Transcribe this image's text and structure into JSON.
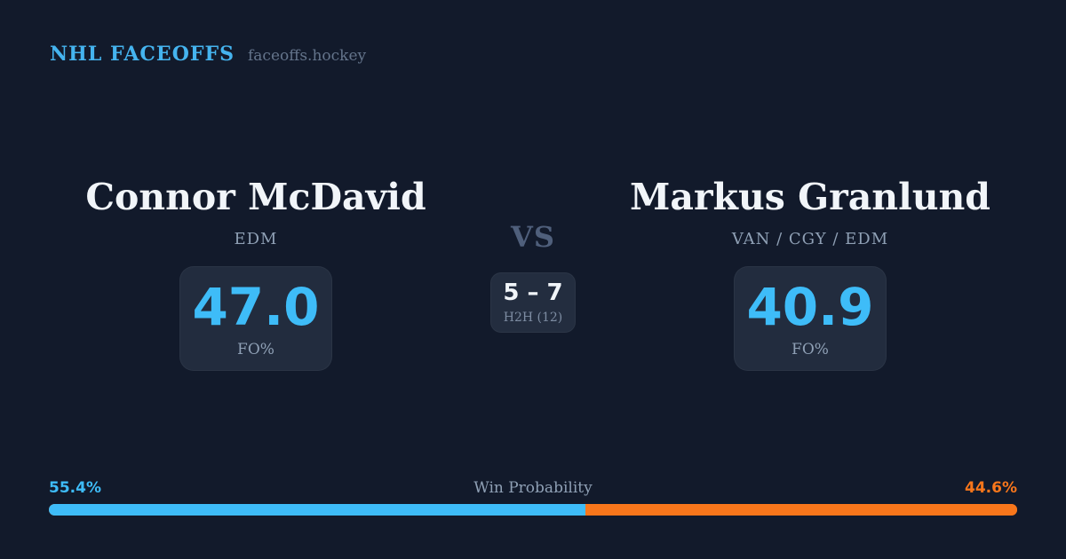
{
  "header": {
    "brand": "NHL FACEOFFS",
    "site": "faceoffs.hockey"
  },
  "matchup": {
    "vs_label": "VS",
    "h2h": {
      "score": "5 – 7",
      "label": "H2H (12)"
    },
    "players": [
      {
        "name": "Connor McDavid",
        "teams": "EDM",
        "fo_pct": "47.0",
        "stat_label": "FO%"
      },
      {
        "name": "Markus Granlund",
        "teams": "VAN / CGY / EDM",
        "fo_pct": "40.9",
        "stat_label": "FO%"
      }
    ]
  },
  "win_probability": {
    "title": "Win Probability",
    "left_label": "55.4%",
    "right_label": "44.6%",
    "left_value": 55.4,
    "right_value": 44.6
  },
  "colors": {
    "background": "#121a2b",
    "card_box": "#222c3e",
    "accent_blue": "#3ebcf8",
    "accent_orange": "#f8761b",
    "text_primary": "#f1f5f9",
    "text_muted": "#8fa0b5",
    "text_dim": "#64748b"
  },
  "chart_data": {
    "type": "bar",
    "title": "Win Probability",
    "categories": [
      "Connor McDavid",
      "Markus Granlund"
    ],
    "values": [
      55.4,
      44.6
    ],
    "value_labels": [
      "55.4%",
      "44.6%"
    ],
    "colors": [
      "#3ebcf8",
      "#f8761b"
    ],
    "layout": "horizontal-stacked",
    "xlim": [
      0,
      100
    ]
  }
}
